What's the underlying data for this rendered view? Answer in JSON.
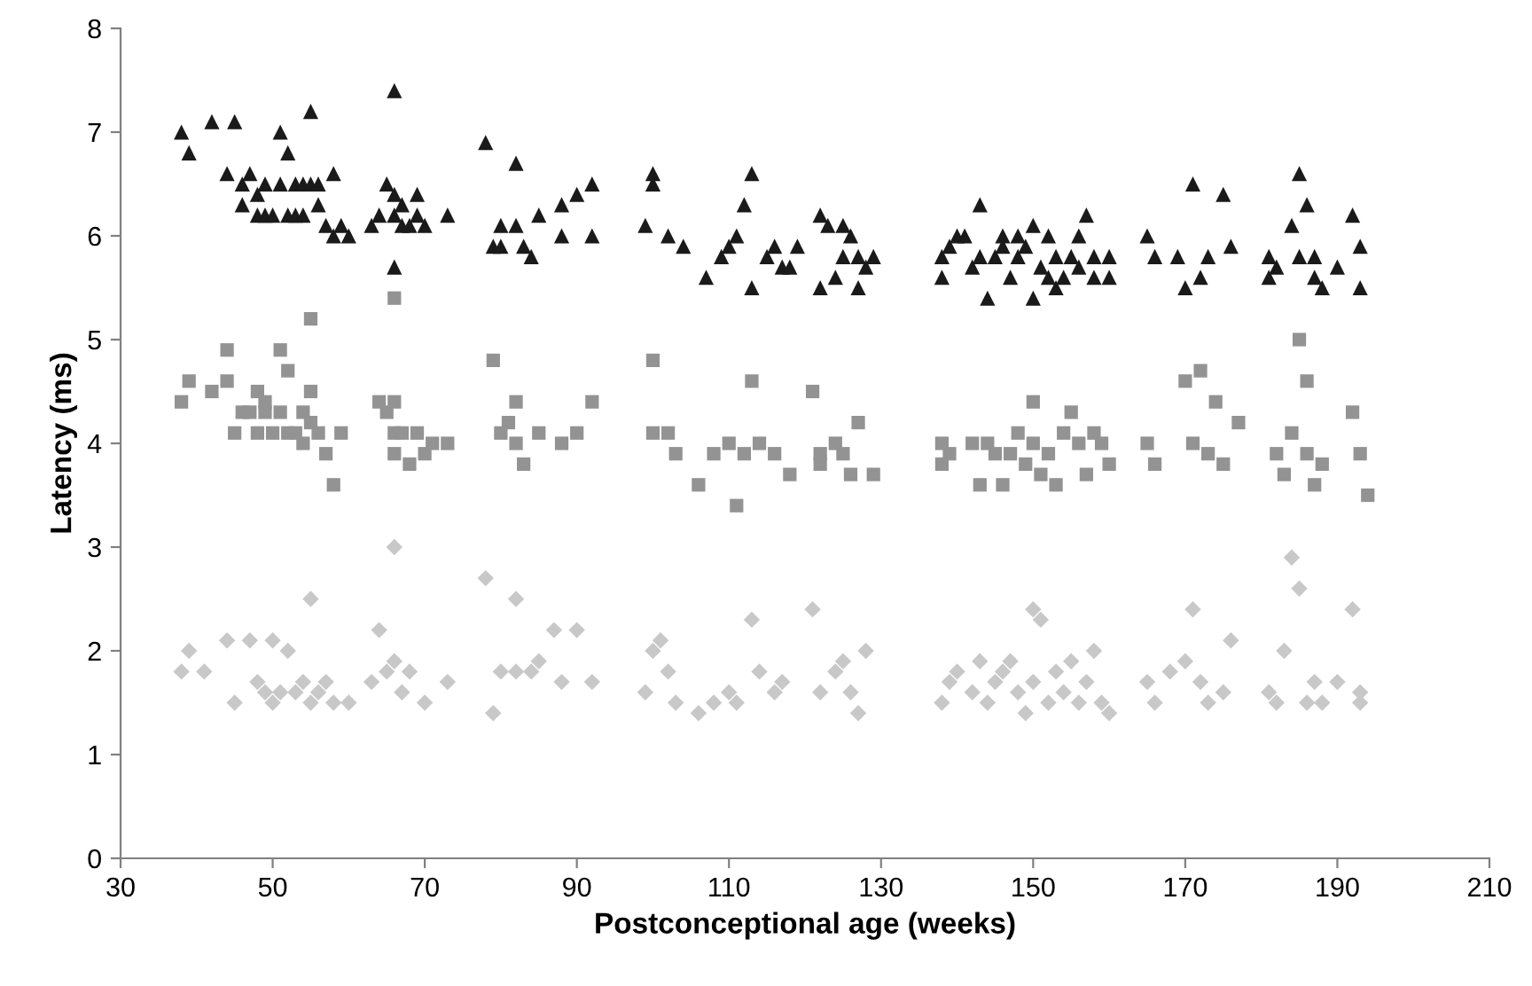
{
  "chart_data": {
    "type": "scatter",
    "xlabel": "Postconceptional age (weeks)",
    "ylabel": "Latency (ms)",
    "xlim": [
      30,
      210
    ],
    "xticks": [
      30,
      50,
      70,
      90,
      110,
      130,
      150,
      170,
      190,
      210
    ],
    "ylim": [
      0,
      8
    ],
    "yticks": [
      0,
      1,
      2,
      3,
      4,
      5,
      6,
      7,
      8
    ],
    "grid": false,
    "series": [
      {
        "color": "#1a1a1a",
        "marker": "triangle",
        "x": [
          38,
          39,
          42,
          45,
          44,
          46,
          46,
          47,
          48,
          48,
          49,
          49,
          50,
          51,
          51,
          52,
          52,
          53,
          53,
          54,
          54,
          55,
          55,
          56,
          56,
          57,
          58,
          58,
          59,
          60,
          63,
          64,
          65,
          66,
          66,
          66,
          66,
          67,
          67,
          68,
          69,
          69,
          70,
          73,
          78,
          79,
          80,
          80,
          82,
          82,
          83,
          84,
          85,
          88,
          88,
          90,
          92,
          92,
          99,
          100,
          100,
          102,
          104,
          107,
          109,
          110,
          111,
          112,
          113,
          113,
          115,
          116,
          117,
          118,
          119,
          122,
          122,
          123,
          124,
          125,
          125,
          126,
          127,
          127,
          128,
          129,
          138,
          138,
          139,
          140,
          141,
          142,
          143,
          143,
          144,
          145,
          146,
          146,
          147,
          148,
          148,
          149,
          150,
          150,
          151,
          152,
          152,
          153,
          153,
          154,
          155,
          156,
          156,
          157,
          158,
          158,
          160,
          160,
          165,
          166,
          169,
          170,
          171,
          172,
          173,
          175,
          176,
          181,
          181,
          182,
          184,
          185,
          185,
          186,
          187,
          187,
          188,
          190,
          192,
          193,
          193
        ],
        "values": [
          7.0,
          6.8,
          7.1,
          7.1,
          6.6,
          6.5,
          6.3,
          6.6,
          6.4,
          6.2,
          6.5,
          6.2,
          6.2,
          6.5,
          7.0,
          6.2,
          6.8,
          6.2,
          6.5,
          6.5,
          6.2,
          7.2,
          6.5,
          6.5,
          6.3,
          6.1,
          6.6,
          6.0,
          6.1,
          6.0,
          6.1,
          6.2,
          6.5,
          7.4,
          6.4,
          6.2,
          5.7,
          6.3,
          6.1,
          6.1,
          6.2,
          6.4,
          6.1,
          6.2,
          6.9,
          5.9,
          6.1,
          5.9,
          6.7,
          6.1,
          5.9,
          5.8,
          6.2,
          6.3,
          6.0,
          6.4,
          6.0,
          6.5,
          6.1,
          6.6,
          6.5,
          6.0,
          5.9,
          5.6,
          5.8,
          5.9,
          6.0,
          6.3,
          5.5,
          6.6,
          5.8,
          5.9,
          5.7,
          5.7,
          5.9,
          5.5,
          6.2,
          6.1,
          5.6,
          6.1,
          5.8,
          6.0,
          5.8,
          5.5,
          5.7,
          5.8,
          5.8,
          5.6,
          5.9,
          6.0,
          6.0,
          5.7,
          5.8,
          6.3,
          5.4,
          5.8,
          5.9,
          6.0,
          5.6,
          5.8,
          6.0,
          5.9,
          6.1,
          5.4,
          5.7,
          6.0,
          5.6,
          5.5,
          5.8,
          5.6,
          5.8,
          5.7,
          6.0,
          6.2,
          5.8,
          5.6,
          5.8,
          5.6,
          6.0,
          5.8,
          5.8,
          5.5,
          6.5,
          5.6,
          5.8,
          6.4,
          5.9,
          5.8,
          5.6,
          5.7,
          6.1,
          6.6,
          5.8,
          6.3,
          5.6,
          5.8,
          5.5,
          5.7,
          6.2,
          5.9,
          5.5
        ]
      },
      {
        "color": "#939393",
        "marker": "square",
        "x": [
          38,
          39,
          42,
          44,
          44,
          45,
          46,
          47,
          48,
          48,
          49,
          49,
          50,
          51,
          51,
          52,
          52,
          53,
          54,
          54,
          55,
          55,
          55,
          56,
          57,
          58,
          59,
          64,
          65,
          66,
          66,
          66,
          66,
          67,
          68,
          69,
          70,
          71,
          73,
          79,
          80,
          81,
          82,
          82,
          83,
          85,
          88,
          90,
          92,
          100,
          100,
          102,
          103,
          106,
          108,
          110,
          111,
          112,
          113,
          114,
          116,
          118,
          121,
          122,
          122,
          124,
          125,
          126,
          127,
          129,
          138,
          138,
          139,
          142,
          143,
          144,
          145,
          146,
          147,
          148,
          149,
          150,
          150,
          151,
          152,
          153,
          154,
          155,
          156,
          157,
          158,
          159,
          160,
          165,
          166,
          170,
          171,
          172,
          173,
          174,
          175,
          177,
          182,
          183,
          184,
          185,
          186,
          186,
          187,
          188,
          192,
          193,
          194
        ],
        "values": [
          4.4,
          4.6,
          4.5,
          4.9,
          4.6,
          4.1,
          4.3,
          4.3,
          4.1,
          4.5,
          4.4,
          4.3,
          4.1,
          4.9,
          4.3,
          4.7,
          4.1,
          4.1,
          4.3,
          4.0,
          5.2,
          4.5,
          4.2,
          4.1,
          3.9,
          3.6,
          4.1,
          4.4,
          4.3,
          5.4,
          4.4,
          4.1,
          3.9,
          4.1,
          3.8,
          4.1,
          3.9,
          4.0,
          4.0,
          4.8,
          4.1,
          4.2,
          4.4,
          4.0,
          3.8,
          4.1,
          4.0,
          4.1,
          4.4,
          4.8,
          4.1,
          4.1,
          3.9,
          3.6,
          3.9,
          4.0,
          3.4,
          3.9,
          4.6,
          4.0,
          3.9,
          3.7,
          4.5,
          3.9,
          3.8,
          4.0,
          3.9,
          3.7,
          4.2,
          3.7,
          4.0,
          3.8,
          3.9,
          4.0,
          3.6,
          4.0,
          3.9,
          3.6,
          3.9,
          4.1,
          3.8,
          4.4,
          4.0,
          3.7,
          3.9,
          3.6,
          4.1,
          4.3,
          4.0,
          3.7,
          4.1,
          4.0,
          3.8,
          4.0,
          3.8,
          4.6,
          4.0,
          4.7,
          3.9,
          4.4,
          3.8,
          4.2,
          3.9,
          3.7,
          4.1,
          5.0,
          4.6,
          3.9,
          3.6,
          3.8,
          4.3,
          3.9,
          3.5
        ]
      },
      {
        "color": "#c8c8c8",
        "marker": "diamond",
        "x": [
          38,
          39,
          41,
          44,
          45,
          47,
          48,
          49,
          50,
          50,
          51,
          52,
          53,
          54,
          55,
          55,
          56,
          57,
          58,
          60,
          63,
          64,
          65,
          66,
          66,
          67,
          68,
          70,
          73,
          78,
          79,
          80,
          82,
          82,
          84,
          85,
          87,
          88,
          90,
          92,
          99,
          100,
          101,
          102,
          103,
          106,
          108,
          110,
          111,
          113,
          114,
          116,
          117,
          121,
          122,
          124,
          125,
          126,
          127,
          128,
          138,
          139,
          140,
          142,
          143,
          144,
          145,
          146,
          147,
          148,
          149,
          150,
          150,
          151,
          152,
          153,
          154,
          155,
          156,
          157,
          158,
          159,
          160,
          165,
          166,
          168,
          170,
          171,
          172,
          173,
          175,
          176,
          181,
          182,
          183,
          184,
          185,
          186,
          187,
          188,
          190,
          192,
          193,
          193
        ],
        "values": [
          1.8,
          2.0,
          1.8,
          2.1,
          1.5,
          2.1,
          1.7,
          1.6,
          2.1,
          1.5,
          1.6,
          2.0,
          1.6,
          1.7,
          2.5,
          1.5,
          1.6,
          1.7,
          1.5,
          1.5,
          1.7,
          2.2,
          1.8,
          3.0,
          1.9,
          1.6,
          1.8,
          1.5,
          1.7,
          2.7,
          1.4,
          1.8,
          2.5,
          1.8,
          1.8,
          1.9,
          2.2,
          1.7,
          2.2,
          1.7,
          1.6,
          2.0,
          2.1,
          1.8,
          1.5,
          1.4,
          1.5,
          1.6,
          1.5,
          2.3,
          1.8,
          1.6,
          1.7,
          2.4,
          1.6,
          1.8,
          1.9,
          1.6,
          1.4,
          2.0,
          1.5,
          1.7,
          1.8,
          1.6,
          1.9,
          1.5,
          1.7,
          1.8,
          1.9,
          1.6,
          1.4,
          2.4,
          1.7,
          2.3,
          1.5,
          1.8,
          1.6,
          1.9,
          1.5,
          1.7,
          2.0,
          1.5,
          1.4,
          1.7,
          1.5,
          1.8,
          1.9,
          2.4,
          1.7,
          1.5,
          1.6,
          2.1,
          1.6,
          1.5,
          2.0,
          2.9,
          2.6,
          1.5,
          1.7,
          1.5,
          1.7,
          2.4,
          1.5,
          1.6
        ]
      }
    ]
  }
}
